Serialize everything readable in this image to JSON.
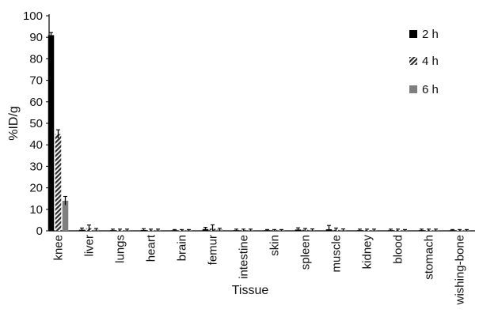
{
  "chart_data": {
    "type": "bar",
    "xlabel": "Tissue",
    "ylabel": "%ID/g",
    "ylim": [
      0,
      100
    ],
    "yticks": [
      0,
      10,
      20,
      30,
      40,
      50,
      60,
      70,
      80,
      90,
      100
    ],
    "grid": false,
    "legend_position": "top-right",
    "categories": [
      "knee",
      "liver",
      "lungs",
      "heart",
      "brain",
      "femur",
      "intestine",
      "skin",
      "spleen",
      "muscle",
      "kidney",
      "blood",
      "stomach",
      "wishing-bone"
    ],
    "series": [
      {
        "name": "2 h",
        "pattern": "solid",
        "color": "#000000",
        "values": [
          91,
          0.5,
          0.3,
          0.4,
          0.2,
          0.8,
          0.3,
          0.2,
          0.6,
          0.7,
          0.3,
          0.3,
          0.3,
          0.2
        ],
        "errors": [
          1.2,
          0.8,
          0.5,
          0.6,
          0.4,
          0.8,
          0.5,
          0.4,
          0.8,
          1.8,
          0.5,
          0.5,
          0.5,
          0.4
        ]
      },
      {
        "name": "4 h",
        "pattern": "hatched",
        "color": "#333333",
        "values": [
          45,
          1.2,
          0.3,
          0.3,
          0.2,
          1.0,
          0.3,
          0.2,
          0.5,
          0.5,
          0.3,
          0.3,
          0.3,
          0.2
        ],
        "errors": [
          2.0,
          1.5,
          0.5,
          0.5,
          0.4,
          1.8,
          0.5,
          0.4,
          0.6,
          0.8,
          0.5,
          0.5,
          0.5,
          0.4
        ]
      },
      {
        "name": "6 h",
        "pattern": "solid",
        "color": "#7f7f7f",
        "values": [
          14,
          0.5,
          0.3,
          0.3,
          0.2,
          0.6,
          0.3,
          0.2,
          0.4,
          0.4,
          0.3,
          0.2,
          0.3,
          0.2
        ],
        "errors": [
          2.0,
          0.6,
          0.5,
          0.5,
          0.4,
          0.6,
          0.5,
          0.4,
          0.5,
          0.5,
          0.5,
          0.4,
          0.5,
          0.4
        ]
      }
    ]
  }
}
